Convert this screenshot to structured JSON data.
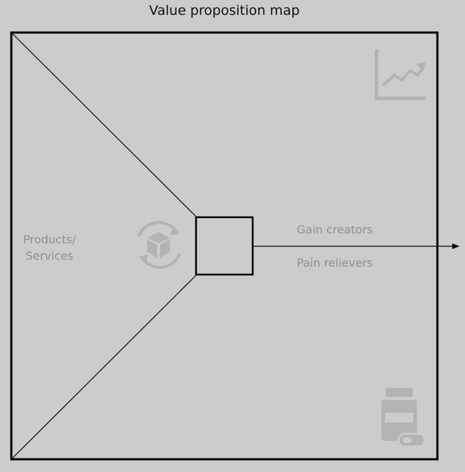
{
  "title": "Value proposition map",
  "sections": {
    "products_services": [
      "Products/",
      "Services"
    ],
    "gain_creators": "Gain creators",
    "pain_relievers": "Pain relievers"
  },
  "icons": {
    "gain": "growth-chart-icon",
    "pain": "medicine-bottle-icon",
    "products": "product-box-cycle-icon"
  },
  "colors": {
    "background": "#cccccc",
    "line": "#000000",
    "label": "#8f8f8f",
    "icon": "#b3b3b3"
  }
}
